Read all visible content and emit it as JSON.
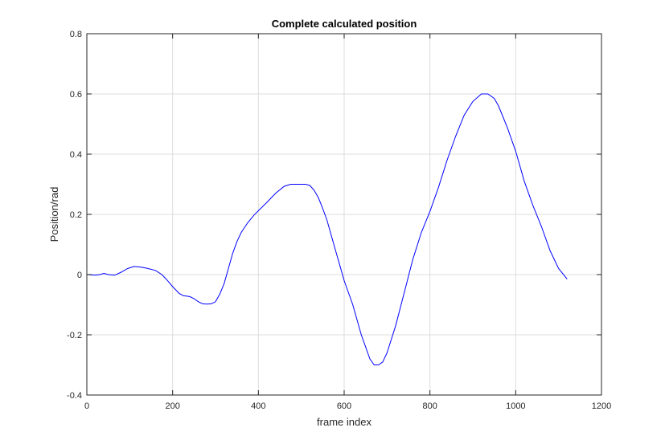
{
  "chart_data": {
    "type": "line",
    "title": "Complete calculated position",
    "xlabel": "frame index",
    "ylabel": "Position/rad",
    "xlim": [
      0,
      1200
    ],
    "ylim": [
      -0.4,
      0.8
    ],
    "xticks": [
      0,
      200,
      400,
      600,
      800,
      1000,
      1200
    ],
    "yticks": [
      -0.4,
      -0.2,
      0,
      0.2,
      0.4,
      0.6,
      0.8
    ],
    "xtick_labels": [
      "0",
      "200",
      "400",
      "600",
      "800",
      "1000",
      "1200"
    ],
    "ytick_labels": [
      "-0.4",
      "-0.2",
      "0",
      "0.2",
      "0.4",
      "0.6",
      "0.8"
    ],
    "grid": true,
    "colors": {
      "line": "#0000ff",
      "grid": "#dcdcdc",
      "axes": "#262626",
      "background": "#ffffff"
    },
    "series": [
      {
        "x": [
          0,
          20,
          30,
          40,
          50,
          65,
          80,
          95,
          110,
          125,
          140,
          160,
          175,
          185,
          200,
          215,
          225,
          240,
          250,
          260,
          270,
          280,
          290,
          300,
          310,
          320,
          330,
          340,
          350,
          360,
          375,
          390,
          400,
          420,
          440,
          460,
          475,
          490,
          510,
          520,
          530,
          540,
          550,
          560,
          570,
          580,
          590,
          600,
          620,
          640,
          660,
          670,
          680,
          690,
          700,
          720,
          740,
          760,
          780,
          800,
          820,
          840,
          860,
          880,
          900,
          920,
          935,
          950,
          960,
          980,
          1000,
          1020,
          1040,
          1060,
          1080,
          1100,
          1120
        ],
        "y": [
          0.0,
          -0.002,
          0.0,
          0.004,
          0.0,
          -0.002,
          0.008,
          0.02,
          0.027,
          0.025,
          0.021,
          0.014,
          0.0,
          -0.015,
          -0.04,
          -0.062,
          -0.07,
          -0.073,
          -0.08,
          -0.09,
          -0.097,
          -0.098,
          -0.097,
          -0.09,
          -0.065,
          -0.03,
          0.02,
          0.07,
          0.11,
          0.14,
          0.172,
          0.198,
          0.212,
          0.24,
          0.27,
          0.293,
          0.3,
          0.3,
          0.3,
          0.296,
          0.28,
          0.255,
          0.22,
          0.18,
          0.13,
          0.08,
          0.03,
          -0.02,
          -0.1,
          -0.2,
          -0.28,
          -0.3,
          -0.3,
          -0.29,
          -0.26,
          -0.17,
          -0.06,
          0.05,
          0.14,
          0.21,
          0.29,
          0.38,
          0.46,
          0.53,
          0.575,
          0.6,
          0.6,
          0.585,
          0.56,
          0.49,
          0.41,
          0.31,
          0.23,
          0.16,
          0.08,
          0.02,
          -0.015
        ]
      }
    ]
  }
}
